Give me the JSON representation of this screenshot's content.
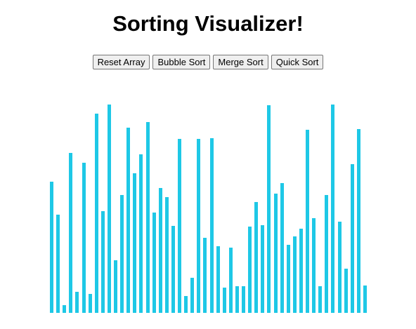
{
  "page": {
    "title": "Sorting Visualizer!"
  },
  "toolbar": {
    "reset_label": "Reset Array",
    "bubble_label": "Bubble Sort",
    "merge_label": "Merge Sort",
    "quick_label": "Quick Sort"
  },
  "colors": {
    "bar": "#1ec8e6"
  },
  "array": {
    "max_value": 297,
    "values": [
      187,
      140,
      11,
      228,
      30,
      214,
      27,
      284,
      145,
      297,
      75,
      168,
      264,
      199,
      226,
      272,
      143,
      178,
      165,
      124,
      248,
      24,
      50,
      248,
      107,
      249,
      95,
      36,
      93,
      38,
      38,
      123,
      158,
      125,
      296,
      170,
      185,
      97,
      109,
      120,
      261,
      135,
      38,
      168,
      297,
      130,
      63,
      212,
      262,
      39
    ]
  }
}
